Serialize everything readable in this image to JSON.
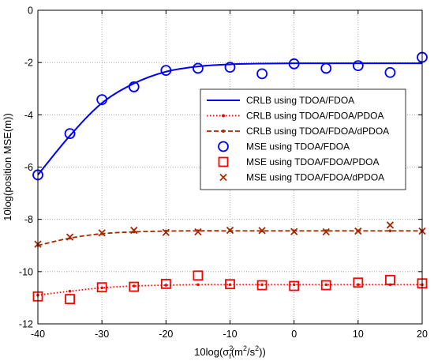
{
  "chart_data": {
    "type": "line",
    "title": "",
    "xlabel": {
      "base": "10log(",
      "sigma": "σ",
      "sub": "f",
      "sup": "2",
      "units": "(m",
      "units_sup": "2",
      "units_tail": "/s",
      "units_sup2": "2",
      "close": "))"
    },
    "ylabel": "10log(position MSE(m))",
    "xlim": [
      -40,
      20
    ],
    "ylim": [
      -12,
      0
    ],
    "xticks": [
      -40,
      -30,
      -20,
      -10,
      0,
      10,
      20
    ],
    "yticks": [
      -12,
      -10,
      -8,
      -6,
      -4,
      -2,
      0
    ],
    "grid": true,
    "legend_position": "center-right",
    "x": [
      -40,
      -35,
      -30,
      -25,
      -20,
      -15,
      -10,
      -5,
      0,
      5,
      10,
      15,
      20
    ],
    "series": [
      {
        "name": "CRLB using TDOA/FDOA",
        "style": "solid",
        "color": "#0000ff",
        "values": [
          -6.3,
          -4.8,
          -3.55,
          -2.8,
          -2.35,
          -2.15,
          -2.07,
          -2.04,
          -2.03,
          -2.03,
          -2.03,
          -2.03,
          -2.03
        ]
      },
      {
        "name": "CRLB using TDOA/FDOA/PDOA",
        "style": "dotted",
        "color": "#ff0000",
        "values": [
          -10.9,
          -10.75,
          -10.62,
          -10.55,
          -10.52,
          -10.5,
          -10.5,
          -10.5,
          -10.5,
          -10.5,
          -10.5,
          -10.5,
          -10.5
        ]
      },
      {
        "name": "CRLB using TDOA/FDOA/dPDOA",
        "style": "dashed",
        "color": "#a52a00",
        "values": [
          -9.0,
          -8.72,
          -8.55,
          -8.48,
          -8.45,
          -8.44,
          -8.44,
          -8.44,
          -8.44,
          -8.44,
          -8.44,
          -8.44,
          -8.44
        ]
      },
      {
        "name": "MSE using TDOA/FDOA",
        "style": "marker-circle",
        "color": "#0000ff",
        "values": [
          -6.3,
          -4.72,
          -3.42,
          -2.93,
          -2.3,
          -2.22,
          -2.18,
          -2.43,
          -2.05,
          -2.22,
          -2.12,
          -2.38,
          -1.8
        ]
      },
      {
        "name": "MSE using TDOA/FDOA/PDOA",
        "style": "marker-square",
        "color": "#ff0000",
        "values": [
          -10.95,
          -11.05,
          -10.6,
          -10.58,
          -10.47,
          -10.15,
          -10.48,
          -10.52,
          -10.55,
          -10.52,
          -10.42,
          -10.32,
          -10.45
        ]
      },
      {
        "name": "MSE using TDOA/FDOA/dPDOA",
        "style": "marker-x",
        "color": "#a52a00",
        "values": [
          -8.95,
          -8.68,
          -8.52,
          -8.42,
          -8.5,
          -8.48,
          -8.42,
          -8.43,
          -8.47,
          -8.48,
          -8.45,
          -8.22,
          -8.45
        ]
      }
    ]
  }
}
